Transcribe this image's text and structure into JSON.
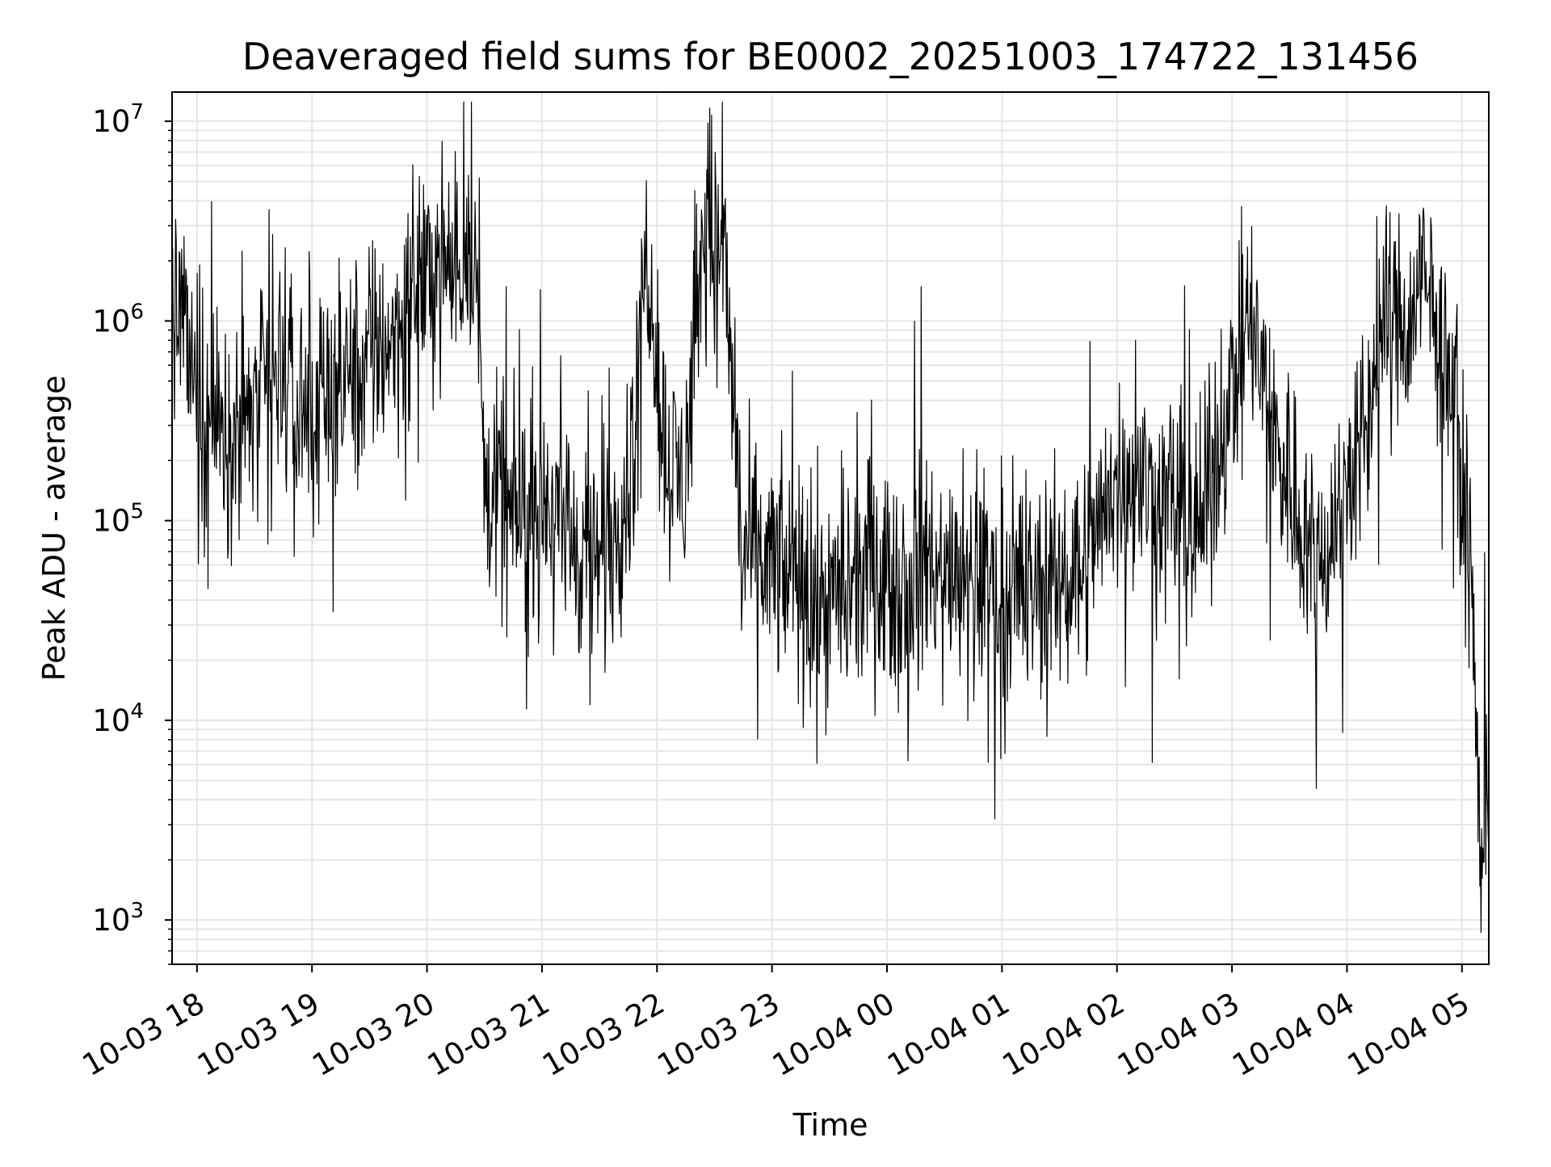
{
  "chart_data": {
    "type": "line",
    "title": "Deaveraged field sums for BE0002_20251003_174722_131456",
    "xlabel": "Time",
    "ylabel": "Peak ADU - average",
    "yscale": "log",
    "ylim": [
      600,
      14000000
    ],
    "xlim": [
      "10-03 17:47",
      "10-04 05:14"
    ],
    "grid": true,
    "legend": "none",
    "line_color": "#000000",
    "grid_color": "#e5e5e5",
    "x_ticks": [
      "10-03 18",
      "10-03 19",
      "10-03 20",
      "10-03 21",
      "10-03 22",
      "10-03 23",
      "10-04 00",
      "10-04 01",
      "10-04 02",
      "10-04 03",
      "10-04 04",
      "10-04 05"
    ],
    "y_ticks": [
      {
        "value": 1000,
        "base": "10",
        "exp": "3"
      },
      {
        "value": 10000,
        "base": "10",
        "exp": "4"
      },
      {
        "value": 100000,
        "base": "10",
        "exp": "5"
      },
      {
        "value": 1000000,
        "base": "10",
        "exp": "6"
      },
      {
        "value": 10000000,
        "base": "10",
        "exp": "7"
      }
    ],
    "series": [
      {
        "x": [
          "10-03 17:47",
          "10-03 18:00",
          "10-03 18:15",
          "10-03 18:30",
          "10-03 18:45",
          "10-03 19:00",
          "10-03 19:15",
          "10-03 19:30",
          "10-03 19:45",
          "10-03 20:00",
          "10-03 20:15",
          "10-03 20:25",
          "10-03 20:30",
          "10-03 20:45",
          "10-03 21:00",
          "10-03 21:15",
          "10-03 21:30",
          "10-03 21:45",
          "10-03 21:55",
          "10-03 22:05",
          "10-03 22:15",
          "10-03 22:25",
          "10-03 22:35",
          "10-03 22:45",
          "10-03 23:00",
          "10-03 23:15",
          "10-03 23:30",
          "10-03 23:45",
          "10-04 00:00",
          "10-04 00:15",
          "10-04 00:30",
          "10-04 00:45",
          "10-04 01:00",
          "10-04 01:15",
          "10-04 01:30",
          "10-04 01:45",
          "10-04 02:00",
          "10-04 02:15",
          "10-04 02:30",
          "10-04 02:45",
          "10-04 03:00",
          "10-04 03:10",
          "10-04 03:20",
          "10-04 03:30",
          "10-04 03:45",
          "10-04 04:00",
          "10-04 04:10",
          "10-04 04:20",
          "10-04 04:30",
          "10-04 04:40",
          "10-04 04:50",
          "10-04 05:00",
          "10-04 05:05",
          "10-04 05:10",
          "10-04 05:14"
        ],
        "y": [
          1500000,
          400000,
          300000,
          350000,
          500000,
          300000,
          500000,
          700000,
          900000,
          2000000,
          1800000,
          2800000,
          150000,
          100000,
          150000,
          80000,
          60000,
          150000,
          2500000,
          200000,
          150000,
          3500000,
          2000000,
          70000,
          60000,
          45000,
          40000,
          45000,
          50000,
          60000,
          50000,
          50000,
          50000,
          45000,
          50000,
          70000,
          150000,
          150000,
          120000,
          100000,
          500000,
          1000000,
          300000,
          150000,
          60000,
          150000,
          300000,
          1200000,
          900000,
          1500000,
          700000,
          150000,
          50000,
          2000,
          5000
        ]
      }
    ]
  }
}
